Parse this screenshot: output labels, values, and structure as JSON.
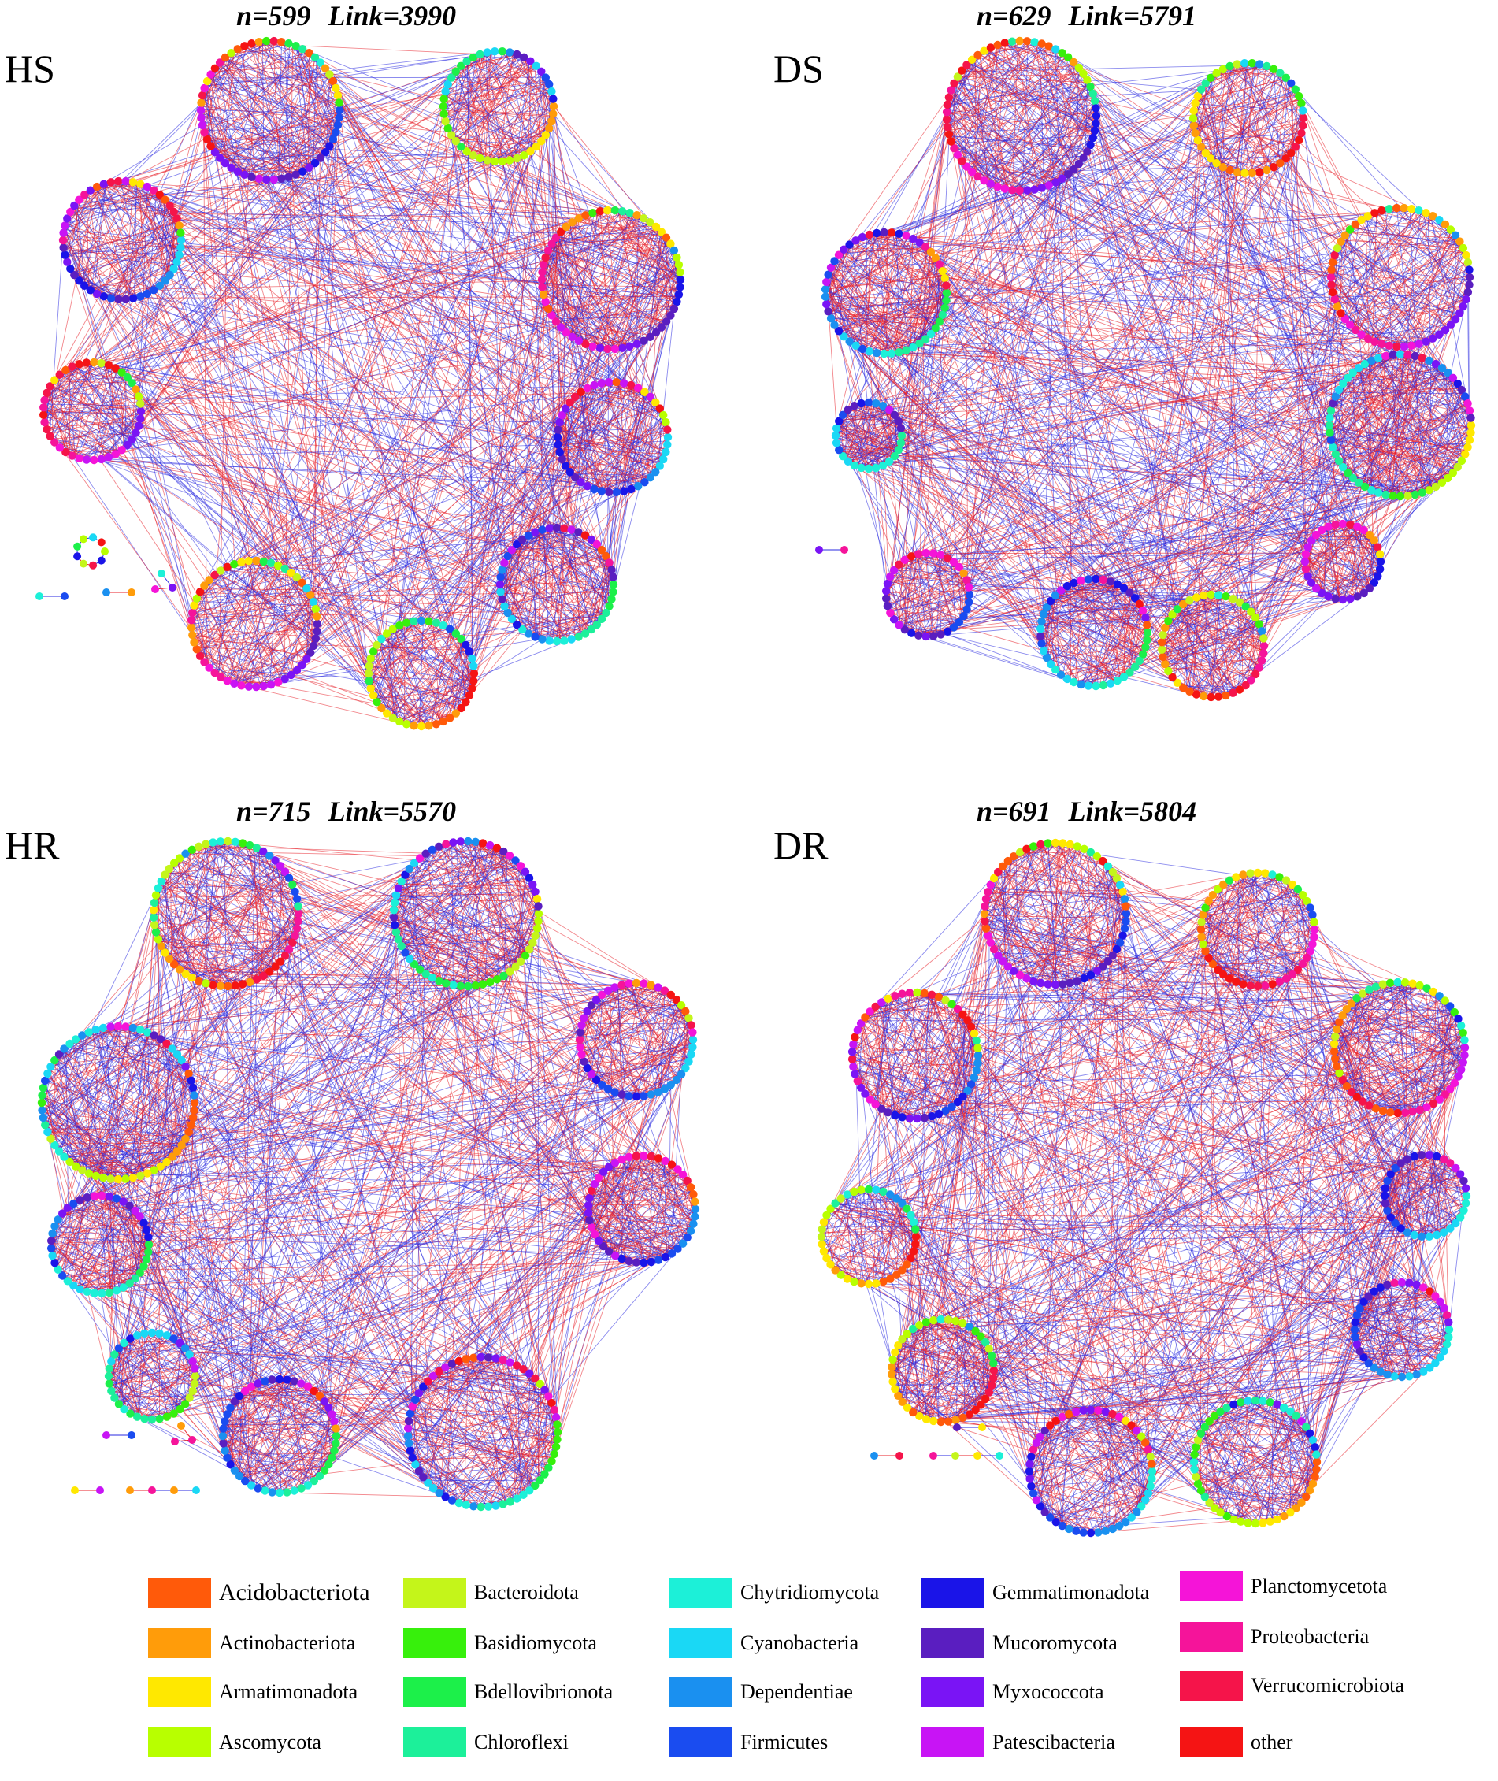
{
  "panels": [
    {
      "label": "HS",
      "n": "n=599",
      "link": "Link=3990"
    },
    {
      "label": "DS",
      "n": "n=629",
      "link": "Link=5791"
    },
    {
      "label": "HR",
      "n": "n=715",
      "link": "Link=5570"
    },
    {
      "label": "DR",
      "n": "n=691",
      "link": "Link=5804"
    }
  ],
  "edge_colors": {
    "positive": "#e8202a",
    "negative": "#2a2ae0"
  },
  "legend": [
    {
      "label": "Acidobacteriota",
      "color": "#ff5a0a"
    },
    {
      "label": "Actinobacteriota",
      "color": "#ff9c0a"
    },
    {
      "label": "Armatimonadota",
      "color": "#ffe800"
    },
    {
      "label": "Ascomycota",
      "color": "#b8ff00"
    },
    {
      "label": "Bacteroidota",
      "color": "#c4f51a"
    },
    {
      "label": "Basidiomycota",
      "color": "#37f00c"
    },
    {
      "label": "Bdellovibrionota",
      "color": "#1cf04a"
    },
    {
      "label": "Chloroflexi",
      "color": "#1cf09a"
    },
    {
      "label": "Chytridiomycota",
      "color": "#1cf0d8"
    },
    {
      "label": "Cyanobacteria",
      "color": "#1ad8f5"
    },
    {
      "label": "Dependentiae",
      "color": "#1a90f0"
    },
    {
      "label": "Firmicutes",
      "color": "#1a4cf0"
    },
    {
      "label": "Gemmatimonadota",
      "color": "#1a14e8"
    },
    {
      "label": "Mucoromycota",
      "color": "#5a1ec0"
    },
    {
      "label": "Myxococcota",
      "color": "#7a14f5"
    },
    {
      "label": "Patescibacteria",
      "color": "#c814f5"
    },
    {
      "label": "Planctomycetota",
      "color": "#f514d8"
    },
    {
      "label": "Proteobacteria",
      "color": "#f5149a"
    },
    {
      "label": "Verrucomicrobiota",
      "color": "#f5144a"
    },
    {
      "label": "other",
      "color": "#f51414"
    }
  ]
}
